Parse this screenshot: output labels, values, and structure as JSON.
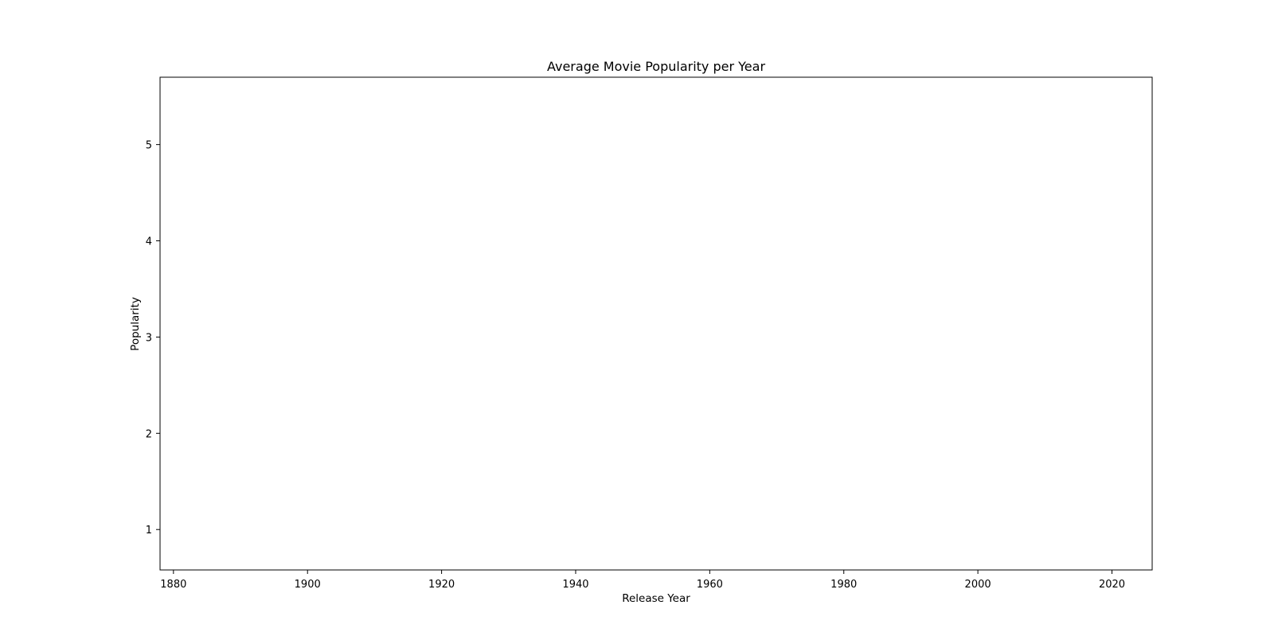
{
  "chart_data": {
    "type": "line",
    "title": "Average Movie Popularity per Year",
    "xlabel": "Release Year",
    "ylabel": "Popularity",
    "xlim": [
      1878,
      2026
    ],
    "ylim": [
      0.58,
      5.7
    ],
    "x_ticks": [
      1880,
      1900,
      1920,
      1940,
      1960,
      1980,
      2000,
      2020
    ],
    "y_ticks": [
      1,
      2,
      3,
      4,
      5
    ],
    "grid": false,
    "series": []
  }
}
